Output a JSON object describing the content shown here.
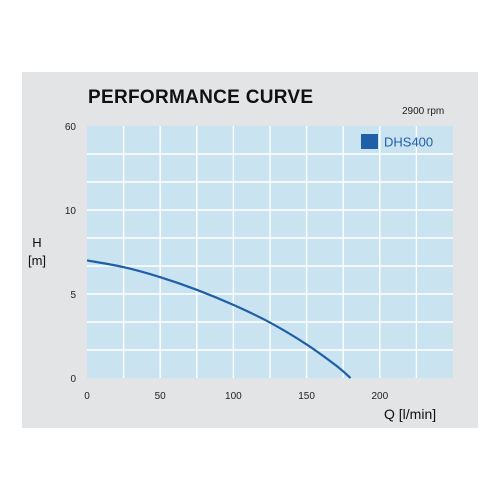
{
  "chart_data": {
    "type": "line",
    "title": "PERFORMANCE CURVE",
    "subtitle": "2900 rpm",
    "ylabel_line1": "H",
    "ylabel_line2": "[m]",
    "xlabel": "Q [l/min]",
    "x_ticks": [
      0,
      50,
      100,
      150,
      200
    ],
    "y_ticks": [
      0,
      5,
      10,
      60
    ],
    "xlim": [
      0,
      250
    ],
    "y_segments": [
      [
        0,
        5
      ],
      [
        5,
        10
      ],
      [
        10,
        60
      ]
    ],
    "grid": true,
    "legend_position": "top-right",
    "series": [
      {
        "name": "DHS400",
        "color": "#1f5fa8",
        "x": [
          0,
          25,
          50,
          75,
          100,
          125,
          150,
          170,
          180
        ],
        "y": [
          7.0,
          6.6,
          6.0,
          5.25,
          4.35,
          3.3,
          2.0,
          0.75,
          0.0
        ]
      }
    ],
    "colors": {
      "plot_background": "#c9e3f1",
      "grid": "#ffffff",
      "curve": "#1f5fa8",
      "panel": "#e3e4e5"
    }
  }
}
